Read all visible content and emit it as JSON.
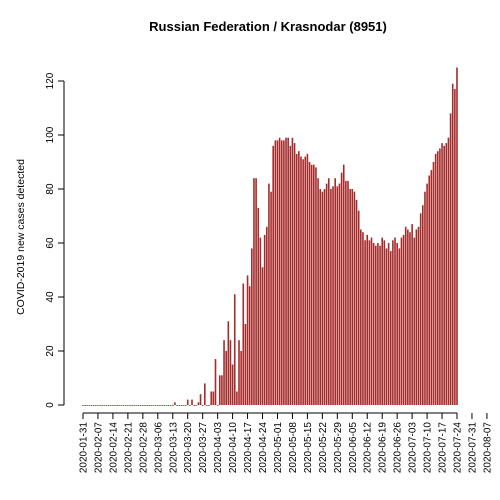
{
  "chart_data": {
    "type": "bar",
    "title": "Russian Federation / Krasnodar (8951)",
    "xlabel": "",
    "ylabel": "COVID-2019 new cases detected",
    "ylim": [
      0,
      125
    ],
    "yticks": [
      0,
      20,
      40,
      60,
      80,
      100,
      120
    ],
    "x_tick_labels": [
      "2020-01-31",
      "2020-02-07",
      "2020-02-14",
      "2020-02-21",
      "2020-02-28",
      "2020-03-06",
      "2020-03-13",
      "2020-03-20",
      "2020-03-27",
      "2020-04-03",
      "2020-04-10",
      "2020-04-17",
      "2020-04-24",
      "2020-05-01",
      "2020-05-08",
      "2020-05-15",
      "2020-05-22",
      "2020-05-29",
      "2020-06-05",
      "2020-06-12",
      "2020-06-19",
      "2020-06-26",
      "2020-07-03",
      "2020-07-10",
      "2020-07-17",
      "2020-07-24",
      "2020-07-31",
      "2020-08-07"
    ],
    "start_date": "2020-01-31",
    "end_date": "2020-08-07",
    "bar_color": "#a52a2a",
    "grid": false,
    "values": [
      0,
      0,
      0,
      0,
      0,
      0,
      0,
      0,
      0,
      0,
      0,
      0,
      0,
      0,
      0,
      0,
      0,
      0,
      0,
      0,
      0,
      0,
      0,
      0,
      0,
      0,
      0,
      0,
      0,
      0,
      0,
      0,
      0,
      0,
      0,
      0,
      0,
      0,
      0,
      0,
      0,
      0,
      0,
      1,
      0,
      0,
      0,
      0,
      0,
      2,
      0,
      2,
      0,
      0,
      1,
      4,
      0,
      8,
      0,
      0,
      5,
      5,
      17,
      0,
      11,
      11,
      24,
      20,
      31,
      24,
      15,
      41,
      5,
      24,
      20,
      45,
      30,
      48,
      44,
      58,
      84,
      84,
      73,
      62,
      51,
      63,
      66,
      82,
      79,
      96,
      98,
      98,
      99,
      98,
      98,
      99,
      99,
      96,
      99,
      97,
      93,
      94,
      92,
      91,
      92,
      93,
      90,
      89,
      89,
      88,
      84,
      80,
      79,
      80,
      82,
      84,
      80,
      81,
      84,
      81,
      82,
      86,
      89,
      83,
      83,
      80,
      80,
      79,
      76,
      72,
      65,
      64,
      61,
      63,
      61,
      62,
      60,
      59,
      60,
      59,
      62,
      61,
      58,
      60,
      57,
      61,
      62,
      60,
      58,
      62,
      63,
      66,
      65,
      64,
      67,
      62,
      65,
      66,
      71,
      74,
      79,
      82,
      85,
      87,
      90,
      93,
      94,
      95,
      97,
      96,
      97,
      99,
      108,
      119,
      117,
      125
    ]
  }
}
